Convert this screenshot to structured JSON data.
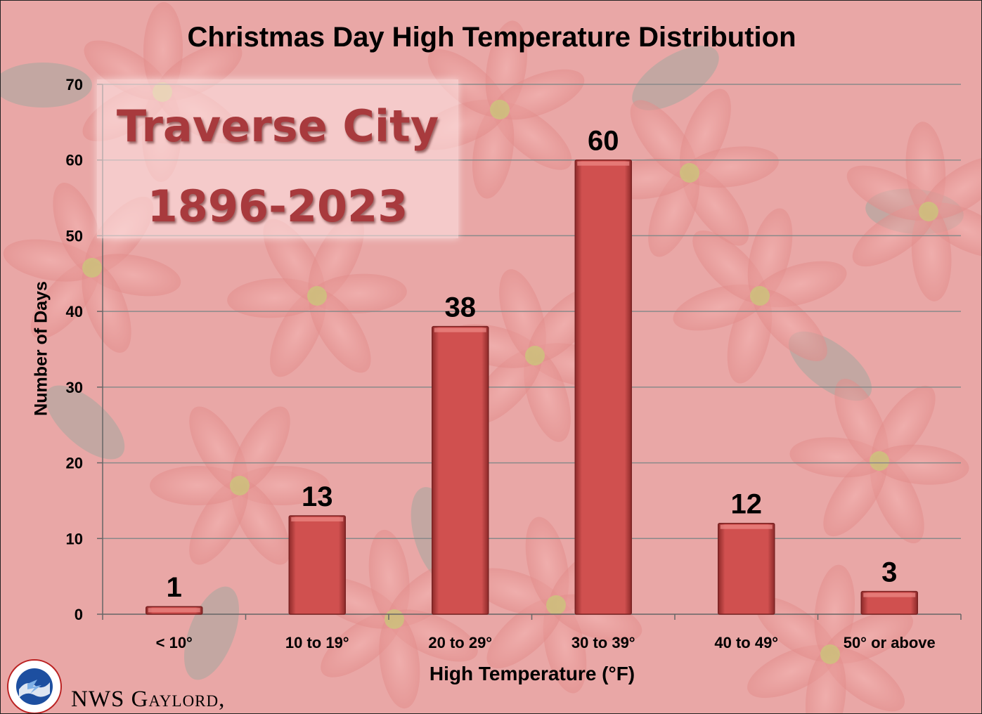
{
  "chart_data": {
    "type": "bar",
    "title": "Christmas Day High Temperature Distribution",
    "xlabel": "High Temperature (°F)",
    "ylabel": "Number of Days",
    "categories": [
      "< 10°",
      "10 to 19°",
      "20 to 29°",
      "30 to 39°",
      "40 to 49°",
      "50° or above"
    ],
    "values": [
      1,
      13,
      38,
      60,
      12,
      3
    ],
    "ylim": [
      0,
      70
    ],
    "yticks": [
      0,
      10,
      20,
      30,
      40,
      50,
      60,
      70
    ],
    "grid": true,
    "bar_color": "#d0504f",
    "data_labels": true
  },
  "overlay": {
    "city": "Traverse City",
    "years": "1896-2023"
  },
  "footer": {
    "credit": "NWS Gaylord,"
  },
  "colors": {
    "bar": "#d0504f",
    "bar_dark": "#8e2a2a",
    "grid": "#8a8a8a",
    "background": "#e7a2a2"
  }
}
